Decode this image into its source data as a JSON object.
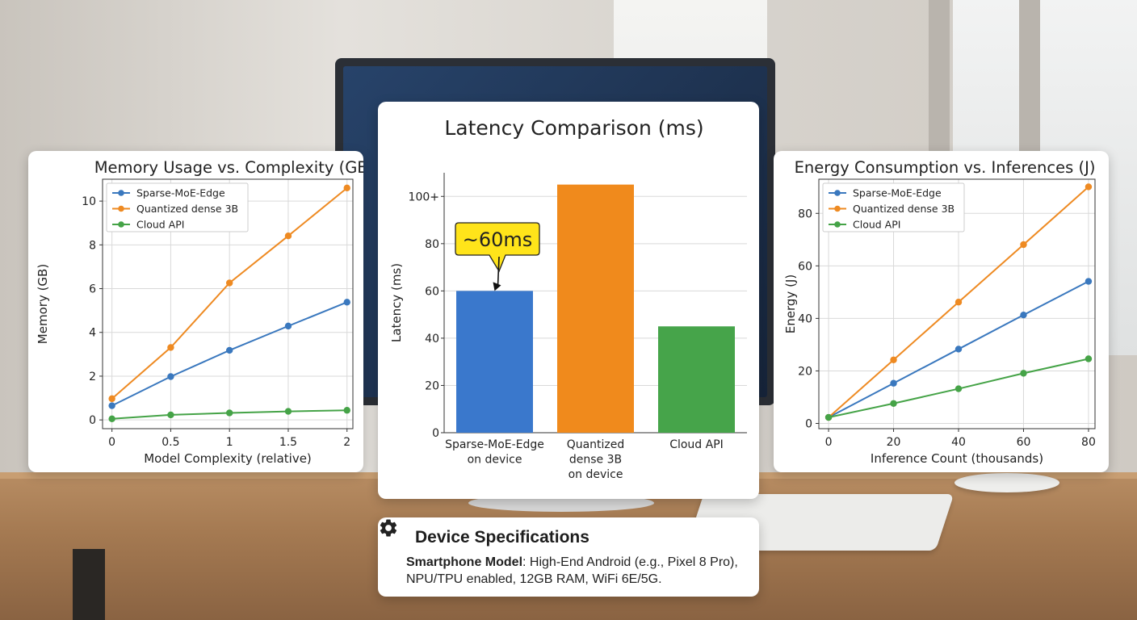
{
  "chart_data": [
    {
      "id": "memory",
      "type": "line",
      "title": "Memory Usage vs. Complexity (GB)",
      "xlabel": "Model Complexity (relative)",
      "ylabel": "Memory (GB)",
      "xlim": [
        -0.08,
        2.05
      ],
      "ylim": [
        -0.4,
        11
      ],
      "xticks": [
        0,
        0.5,
        1,
        1.5,
        2
      ],
      "xtick_labels": [
        "0",
        "0.5",
        "1",
        "1.5",
        "2"
      ],
      "yticks": [
        0,
        2,
        4,
        6,
        8,
        10
      ],
      "ytick_labels": [
        "0",
        "2",
        "4",
        "6",
        "8",
        "10"
      ],
      "grid": true,
      "legend_position": "top-left",
      "x": [
        0,
        0.5,
        1,
        1.5,
        2
      ],
      "series": [
        {
          "name": "Sparse-MoE-Edge",
          "color": "#3a78be",
          "values": [
            0.65,
            1.98,
            3.18,
            4.29,
            5.38
          ]
        },
        {
          "name": "Quantized dense 3B",
          "color": "#ee8a22",
          "values": [
            0.97,
            3.31,
            6.26,
            8.41,
            10.6
          ]
        },
        {
          "name": "Cloud API",
          "color": "#45a347",
          "values": [
            0.05,
            0.23,
            0.32,
            0.39,
            0.44
          ]
        }
      ]
    },
    {
      "id": "latency",
      "type": "bar",
      "title": "Latency Comparison (ms)",
      "ylabel": "Latency (ms)",
      "ylim": [
        0,
        110
      ],
      "yticks": [
        0,
        20,
        40,
        60,
        80,
        100
      ],
      "ytick_labels": [
        "0",
        "20",
        "40",
        "60",
        "80",
        "100+"
      ],
      "grid": true,
      "categories": [
        [
          "Sparse-MoE-Edge",
          "on device"
        ],
        [
          "Quantized",
          "dense 3B",
          "on device"
        ],
        [
          "Cloud API"
        ]
      ],
      "values": [
        60,
        105,
        45
      ],
      "colors": [
        "#3a78cc",
        "#f08a1c",
        "#46a44a"
      ],
      "annotation": {
        "text": "~60ms",
        "target_index": 0,
        "target_value": 60,
        "fill": "#ffe41a"
      }
    },
    {
      "id": "energy",
      "type": "line",
      "title": "Energy Consumption vs. Inferences (J)",
      "xlabel": "Inference Count (thousands)",
      "ylabel": "Energy (J)",
      "xlim": [
        -3,
        82
      ],
      "ylim": [
        -2,
        93
      ],
      "xticks": [
        0,
        20,
        40,
        60,
        80
      ],
      "xtick_labels": [
        "0",
        "20",
        "40",
        "60",
        "80"
      ],
      "yticks": [
        0,
        20,
        40,
        60,
        80
      ],
      "ytick_labels": [
        "0",
        "20",
        "40",
        "60",
        "80"
      ],
      "grid": true,
      "legend_position": "top-left",
      "x": [
        0,
        20,
        40,
        60,
        80
      ],
      "series": [
        {
          "name": "Sparse-MoE-Edge",
          "color": "#3a78be",
          "values": [
            2.3,
            15.3,
            28.3,
            41.3,
            54.1
          ]
        },
        {
          "name": "Quantized dense 3B",
          "color": "#ee8a22",
          "values": [
            2.3,
            24.2,
            46.2,
            68.1,
            90.1
          ]
        },
        {
          "name": "Cloud API",
          "color": "#45a347",
          "values": [
            2.3,
            7.6,
            13.2,
            19.1,
            24.6
          ]
        }
      ]
    }
  ],
  "specs": {
    "title": "Device Specifications",
    "label": "Smartphone Model",
    "text": ": High-End Android (e.g., Pixel 8 Pro), NPU/TPU enabled, 12GB RAM, WiFi 6E/5G.",
    "icon": "gear-icon"
  }
}
